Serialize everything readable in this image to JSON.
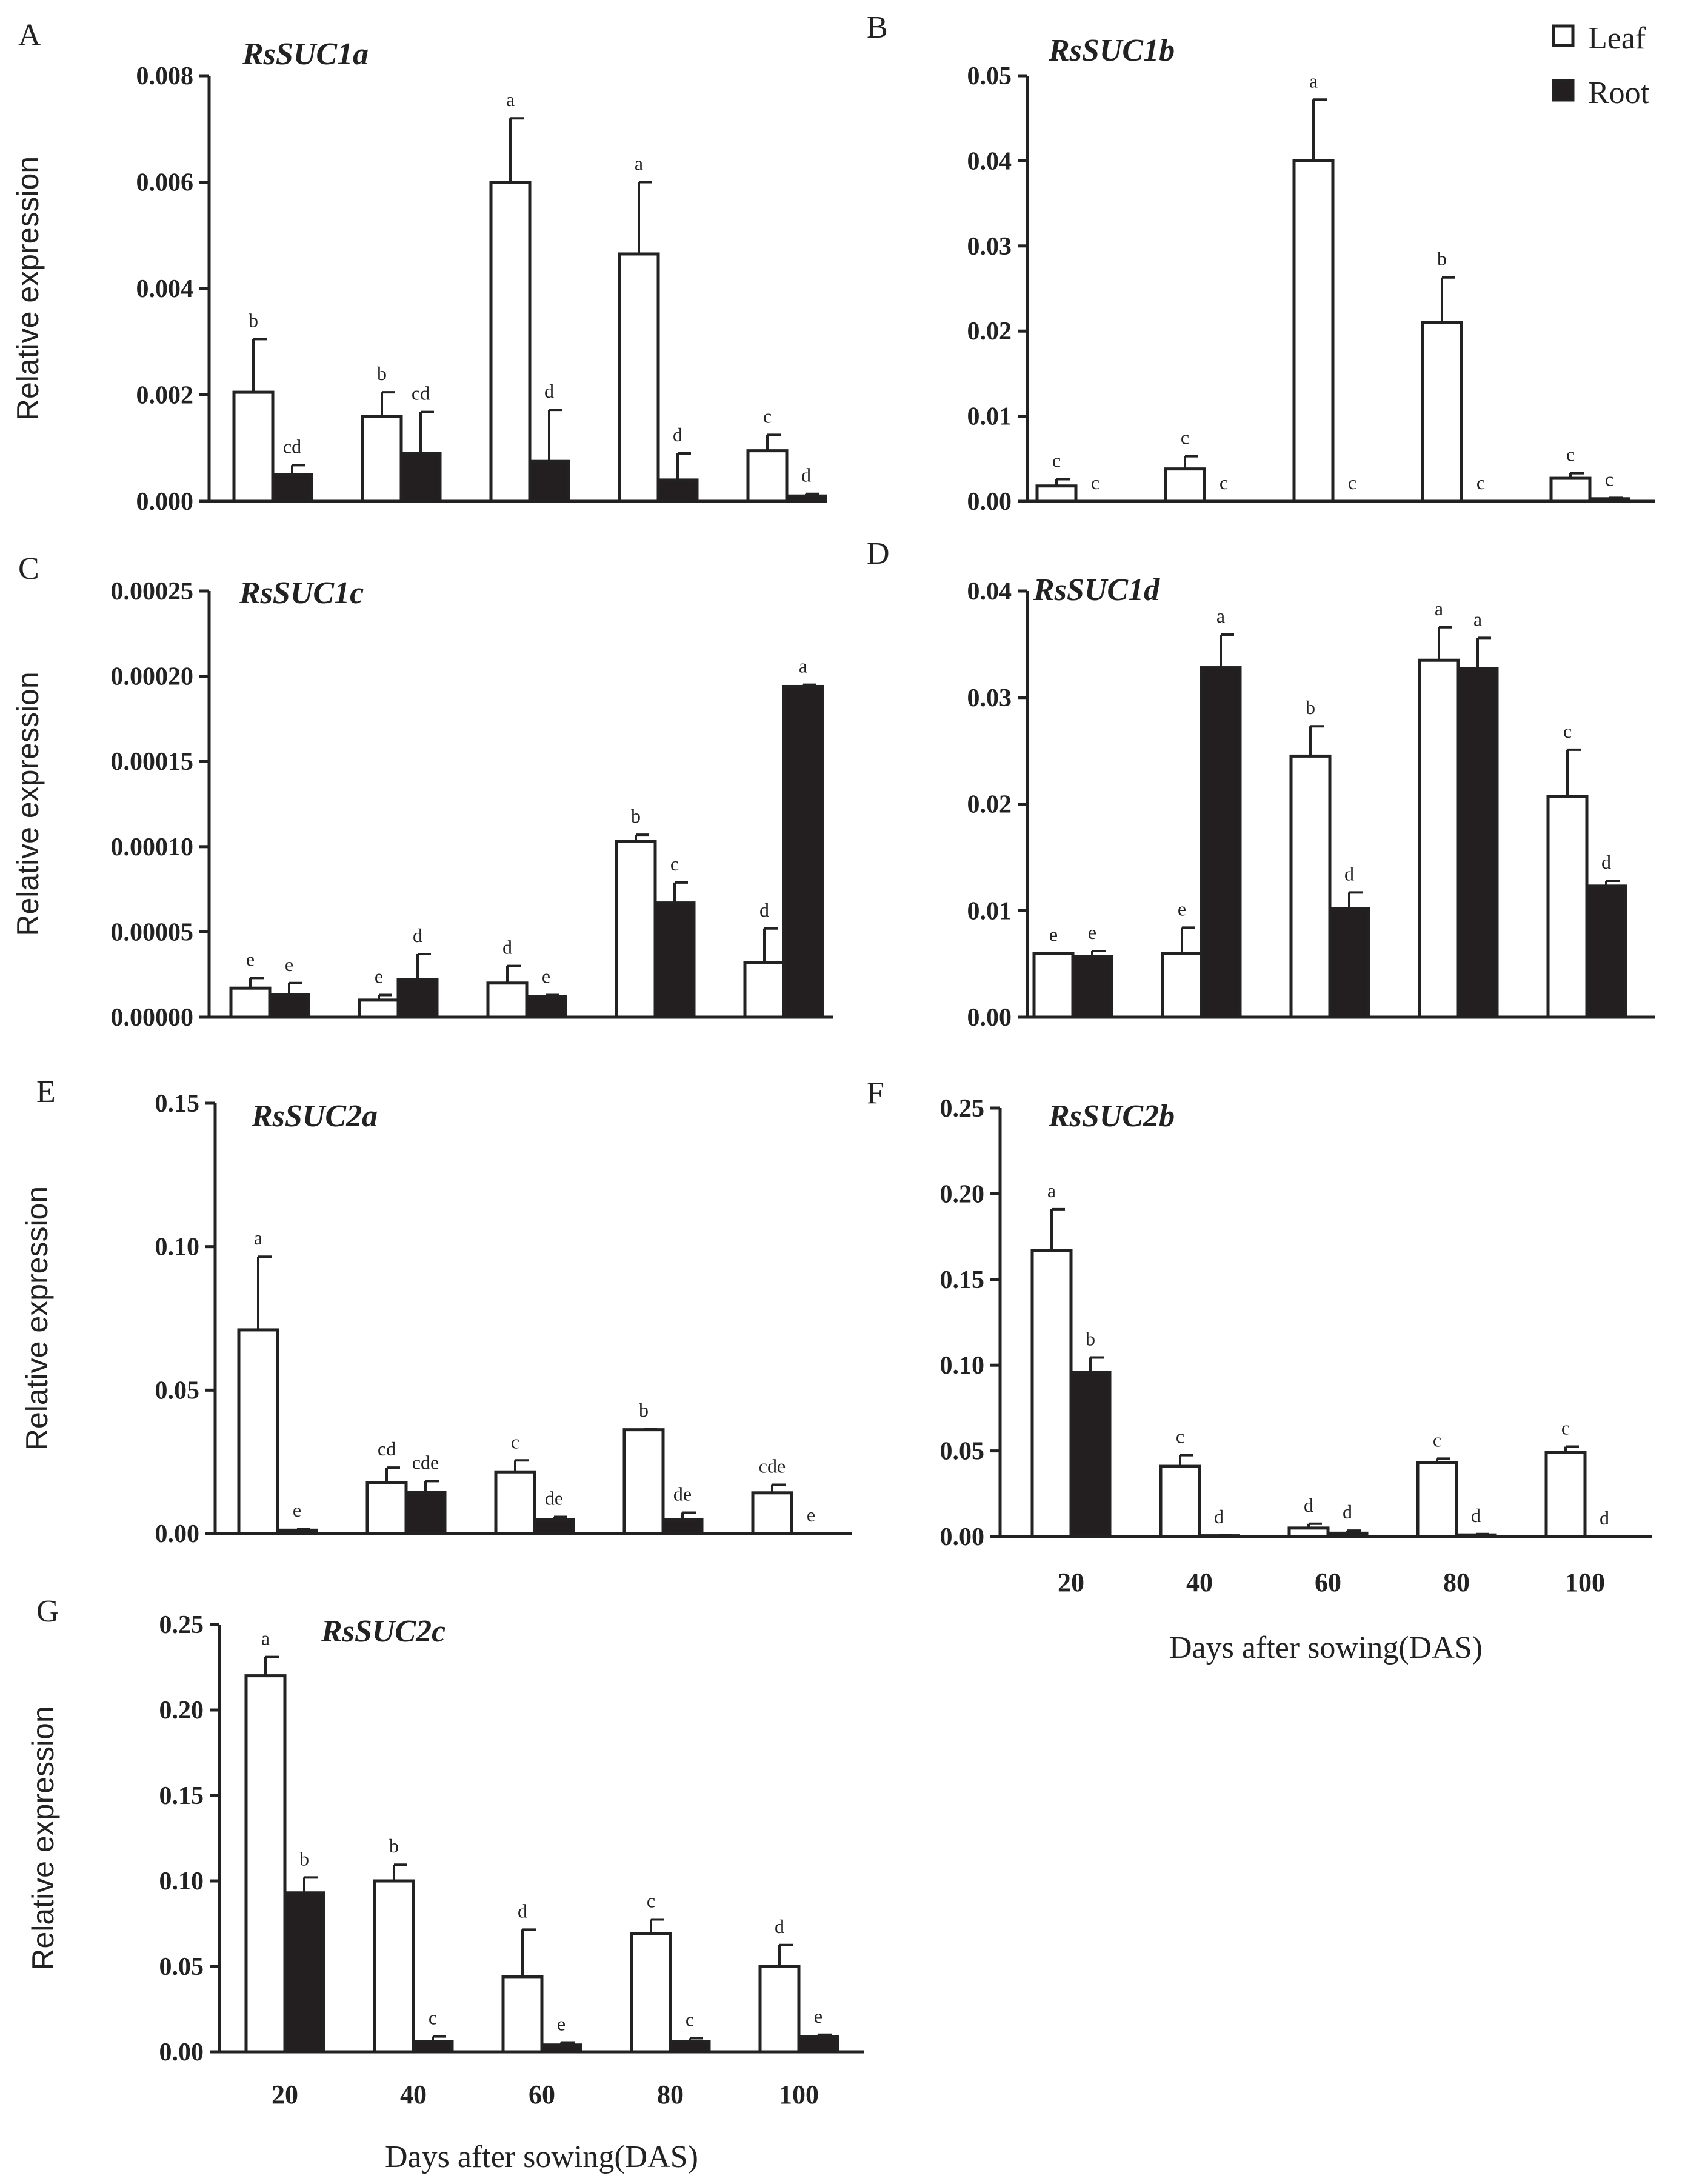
{
  "legend": {
    "items": [
      {
        "label": "Leaf",
        "color": "#ffffff"
      },
      {
        "label": "Root",
        "color": "#231f20"
      }
    ]
  },
  "chart_data": [
    {
      "type": "bar",
      "panel": "A",
      "title": "RsSUC1a",
      "ylabel": "Relative expression",
      "xlabel": "",
      "ylim": [
        0,
        0.008
      ],
      "yticks": [
        "0.000",
        "0.002",
        "0.004",
        "0.006",
        "0.008"
      ],
      "categories": [
        "20",
        "40",
        "60",
        "80",
        "100"
      ],
      "show_categories": false,
      "series": [
        {
          "name": "Leaf",
          "values": [
            0.00205,
            0.0016,
            0.006,
            0.00465,
            0.00095
          ],
          "errors": [
            0.001,
            0.00045,
            0.0012,
            0.00135,
            0.0003
          ],
          "letters": [
            "b",
            "b",
            "a",
            "a",
            "c"
          ]
        },
        {
          "name": "Root",
          "values": [
            0.0005,
            0.0009,
            0.00075,
            0.0004,
            0.0001
          ],
          "errors": [
            0.00018,
            0.00078,
            0.00097,
            0.0005,
            4e-05
          ],
          "letters": [
            "cd",
            "cd",
            "d",
            "d",
            "d"
          ]
        }
      ]
    },
    {
      "type": "bar",
      "panel": "B",
      "title": "RsSUC1b",
      "ylabel": "",
      "xlabel": "",
      "ylim": [
        0,
        0.05
      ],
      "yticks": [
        "0.00",
        "0.01",
        "0.02",
        "0.03",
        "0.04",
        "0.05"
      ],
      "categories": [
        "20",
        "40",
        "60",
        "80",
        "100"
      ],
      "show_categories": false,
      "series": [
        {
          "name": "Leaf",
          "values": [
            0.0018,
            0.0038,
            0.04,
            0.021,
            0.0027
          ],
          "errors": [
            0.0008,
            0.0015,
            0.0072,
            0.0053,
            0.0006
          ],
          "letters": [
            "c",
            "c",
            "a",
            "b",
            "c"
          ]
        },
        {
          "name": "Root",
          "values": [
            0,
            0,
            0,
            0,
            0.0003
          ],
          "errors": [
            0,
            0,
            0,
            0,
            0.0001
          ],
          "letters": [
            "c",
            "c",
            "c",
            "c",
            "c"
          ]
        }
      ]
    },
    {
      "type": "bar",
      "panel": "C",
      "title": "RsSUC1c",
      "ylabel": "Relative expression",
      "xlabel": "",
      "ylim": [
        0,
        0.00025
      ],
      "yticks": [
        "0.00000",
        "0.00005",
        "0.00010",
        "0.00015",
        "0.00020",
        "0.00025"
      ],
      "categories": [
        "20",
        "40",
        "60",
        "80",
        "100"
      ],
      "show_categories": false,
      "series": [
        {
          "name": "Leaf",
          "values": [
            1.7e-05,
            1e-05,
            2e-05,
            0.000103,
            3.2e-05
          ],
          "errors": [
            6e-06,
            3e-06,
            1e-05,
            4e-06,
            2e-05
          ],
          "letters": [
            "e",
            "e",
            "d",
            "b",
            "d"
          ]
        },
        {
          "name": "Root",
          "values": [
            1.3e-05,
            2.2e-05,
            1.2e-05,
            6.7e-05,
            0.000194
          ],
          "errors": [
            7e-06,
            1.5e-05,
            1e-06,
            1.2e-05,
            1e-06
          ],
          "letters": [
            "e",
            "d",
            "e",
            "c",
            "a"
          ]
        }
      ]
    },
    {
      "type": "bar",
      "panel": "D",
      "title": "RsSUC1d",
      "ylabel": "",
      "xlabel": "",
      "ylim": [
        0,
        0.04
      ],
      "yticks": [
        "0.00",
        "0.01",
        "0.02",
        "0.03",
        "0.04"
      ],
      "categories": [
        "20",
        "40",
        "60",
        "80",
        "100"
      ],
      "show_categories": false,
      "series": [
        {
          "name": "Leaf",
          "values": [
            0.006,
            0.006,
            0.0245,
            0.0335,
            0.0207
          ],
          "errors": [
            0,
            0.0024,
            0.0028,
            0.0031,
            0.0044
          ],
          "letters": [
            "e",
            "e",
            "b",
            "a",
            "c"
          ]
        },
        {
          "name": "Root",
          "values": [
            0.0057,
            0.0328,
            0.0102,
            0.0327,
            0.0123
          ],
          "errors": [
            0.0005,
            0.0031,
            0.0015,
            0.0029,
            0.0005
          ],
          "letters": [
            "e",
            "a",
            "d",
            "a",
            "d"
          ]
        }
      ]
    },
    {
      "type": "bar",
      "panel": "E",
      "title": "RsSUC2a",
      "ylabel": "Relative expression",
      "xlabel": "",
      "ylim": [
        0,
        0.15
      ],
      "yticks": [
        "0.00",
        "0.05",
        "0.10",
        "0.15"
      ],
      "categories": [
        "20",
        "40",
        "60",
        "80",
        "100"
      ],
      "show_categories": false,
      "series": [
        {
          "name": "Leaf",
          "values": [
            0.071,
            0.0178,
            0.0215,
            0.0362,
            0.0142
          ],
          "errors": [
            0.0255,
            0.0052,
            0.004,
            0.0003,
            0.0028
          ],
          "letters": [
            "a",
            "cd",
            "c",
            "b",
            "cde"
          ]
        },
        {
          "name": "Root",
          "values": [
            0.0012,
            0.0143,
            0.0048,
            0.0048,
            0
          ],
          "errors": [
            0.0005,
            0.004,
            0.001,
            0.0025,
            0
          ],
          "letters": [
            "e",
            "cde",
            "de",
            "de",
            "e"
          ]
        }
      ]
    },
    {
      "type": "bar",
      "panel": "F",
      "title": "RsSUC2b",
      "ylabel": "",
      "xlabel": "Days after sowing(DAS)",
      "ylim": [
        0,
        0.25
      ],
      "yticks": [
        "0.00",
        "0.05",
        "0.10",
        "0.15",
        "0.20",
        "0.25"
      ],
      "categories": [
        "20",
        "40",
        "60",
        "80",
        "100"
      ],
      "show_categories": true,
      "series": [
        {
          "name": "Leaf",
          "values": [
            0.167,
            0.041,
            0.005,
            0.043,
            0.049
          ],
          "errors": [
            0.024,
            0.0065,
            0.0025,
            0.0025,
            0.0035
          ],
          "letters": [
            "a",
            "c",
            "d",
            "c",
            "c"
          ]
        },
        {
          "name": "Root",
          "values": [
            0.096,
            0.0005,
            0.002,
            0.001,
            0
          ],
          "errors": [
            0.0085,
            0.0002,
            0.0015,
            0.0005,
            0
          ],
          "letters": [
            "b",
            "d",
            "d",
            "d",
            "d"
          ]
        }
      ]
    },
    {
      "type": "bar",
      "panel": "G",
      "title": "RsSUC2c",
      "ylabel": "Relative expression",
      "xlabel": "Days after sowing(DAS)",
      "ylim": [
        0,
        0.25
      ],
      "yticks": [
        "0.00",
        "0.05",
        "0.10",
        "0.15",
        "0.20",
        "0.25"
      ],
      "categories": [
        "20",
        "40",
        "60",
        "80",
        "100"
      ],
      "show_categories": true,
      "series": [
        {
          "name": "Leaf",
          "values": [
            0.22,
            0.1,
            0.044,
            0.069,
            0.05
          ],
          "errors": [
            0.011,
            0.0095,
            0.0275,
            0.0085,
            0.0125
          ],
          "letters": [
            "a",
            "b",
            "d",
            "c",
            "d"
          ]
        },
        {
          "name": "Root",
          "values": [
            0.093,
            0.006,
            0.004,
            0.006,
            0.009
          ],
          "errors": [
            0.009,
            0.003,
            0.0015,
            0.002,
            0.001
          ],
          "letters": [
            "b",
            "c",
            "e",
            "c",
            "e"
          ]
        }
      ]
    }
  ]
}
